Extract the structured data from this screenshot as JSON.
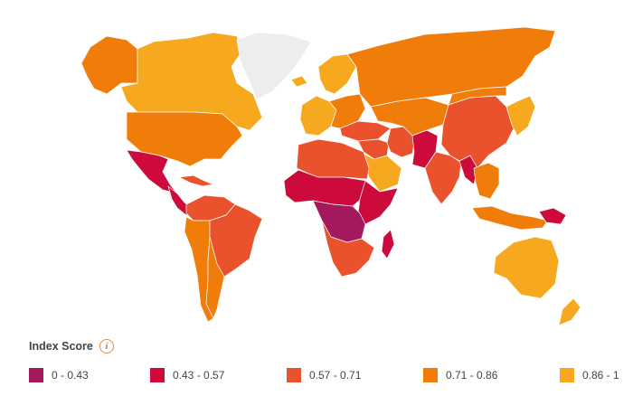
{
  "map": {
    "colors": {
      "ocean": "#ffffff",
      "no_data": "#ededed",
      "bin_0": "#a3195b",
      "bin_1": "#cc0a3c",
      "bin_2": "#e9522c",
      "bin_3": "#f07d0a",
      "bin_4": "#f6a81e"
    },
    "regions": [
      {
        "name": "Alaska",
        "bin": 3
      },
      {
        "name": "Canada",
        "bin": 4
      },
      {
        "name": "Greenland",
        "bin": null
      },
      {
        "name": "United States",
        "bin": 3
      },
      {
        "name": "Mexico",
        "bin": 1
      },
      {
        "name": "Central America",
        "bin": 1
      },
      {
        "name": "Caribbean",
        "bin": 2
      },
      {
        "name": "Colombia & Venezuela",
        "bin": 2
      },
      {
        "name": "Andean South America",
        "bin": 3
      },
      {
        "name": "Brazil",
        "bin": 2
      },
      {
        "name": "Southern Cone",
        "bin": 3
      },
      {
        "name": "Iceland",
        "bin": 4
      },
      {
        "name": "Western Europe",
        "bin": 4
      },
      {
        "name": "Nordics",
        "bin": 4
      },
      {
        "name": "Eastern Europe",
        "bin": 3
      },
      {
        "name": "Russia",
        "bin": 3
      },
      {
        "name": "Turkey & Caucasus",
        "bin": 2
      },
      {
        "name": "Middle East",
        "bin": 2
      },
      {
        "name": "Arabian Peninsula",
        "bin": 4
      },
      {
        "name": "Iran",
        "bin": 2
      },
      {
        "name": "Afghanistan & Pakistan",
        "bin": 1
      },
      {
        "name": "Central Asia",
        "bin": 3
      },
      {
        "name": "North Africa",
        "bin": 2
      },
      {
        "name": "Sahel",
        "bin": 1
      },
      {
        "name": "Horn of Africa",
        "bin": 1
      },
      {
        "name": "Central Africa",
        "bin": 0
      },
      {
        "name": "Southern Africa",
        "bin": 2
      },
      {
        "name": "Madagascar",
        "bin": 1
      },
      {
        "name": "India",
        "bin": 2
      },
      {
        "name": "Myanmar",
        "bin": 1
      },
      {
        "name": "China",
        "bin": 2
      },
      {
        "name": "Mongolia",
        "bin": 3
      },
      {
        "name": "Korea & Japan",
        "bin": 4
      },
      {
        "name": "Southeast Asia",
        "bin": 3
      },
      {
        "name": "Indonesia",
        "bin": 3
      },
      {
        "name": "Papua New Guinea",
        "bin": 1
      },
      {
        "name": "Australia",
        "bin": 4
      },
      {
        "name": "New Zealand",
        "bin": 4
      }
    ]
  },
  "legend": {
    "title": "Index Score",
    "info_icon": "info-icon",
    "info_glyph": "i",
    "items": [
      {
        "label": "0 - 0.43",
        "color": "#a3195b"
      },
      {
        "label": "0.43 - 0.57",
        "color": "#cc0a3c"
      },
      {
        "label": "0.57 - 0.71",
        "color": "#e9522c"
      },
      {
        "label": "0.71 - 0.86",
        "color": "#f07d0a"
      },
      {
        "label": "0.86 - 1",
        "color": "#f6a81e"
      }
    ]
  }
}
